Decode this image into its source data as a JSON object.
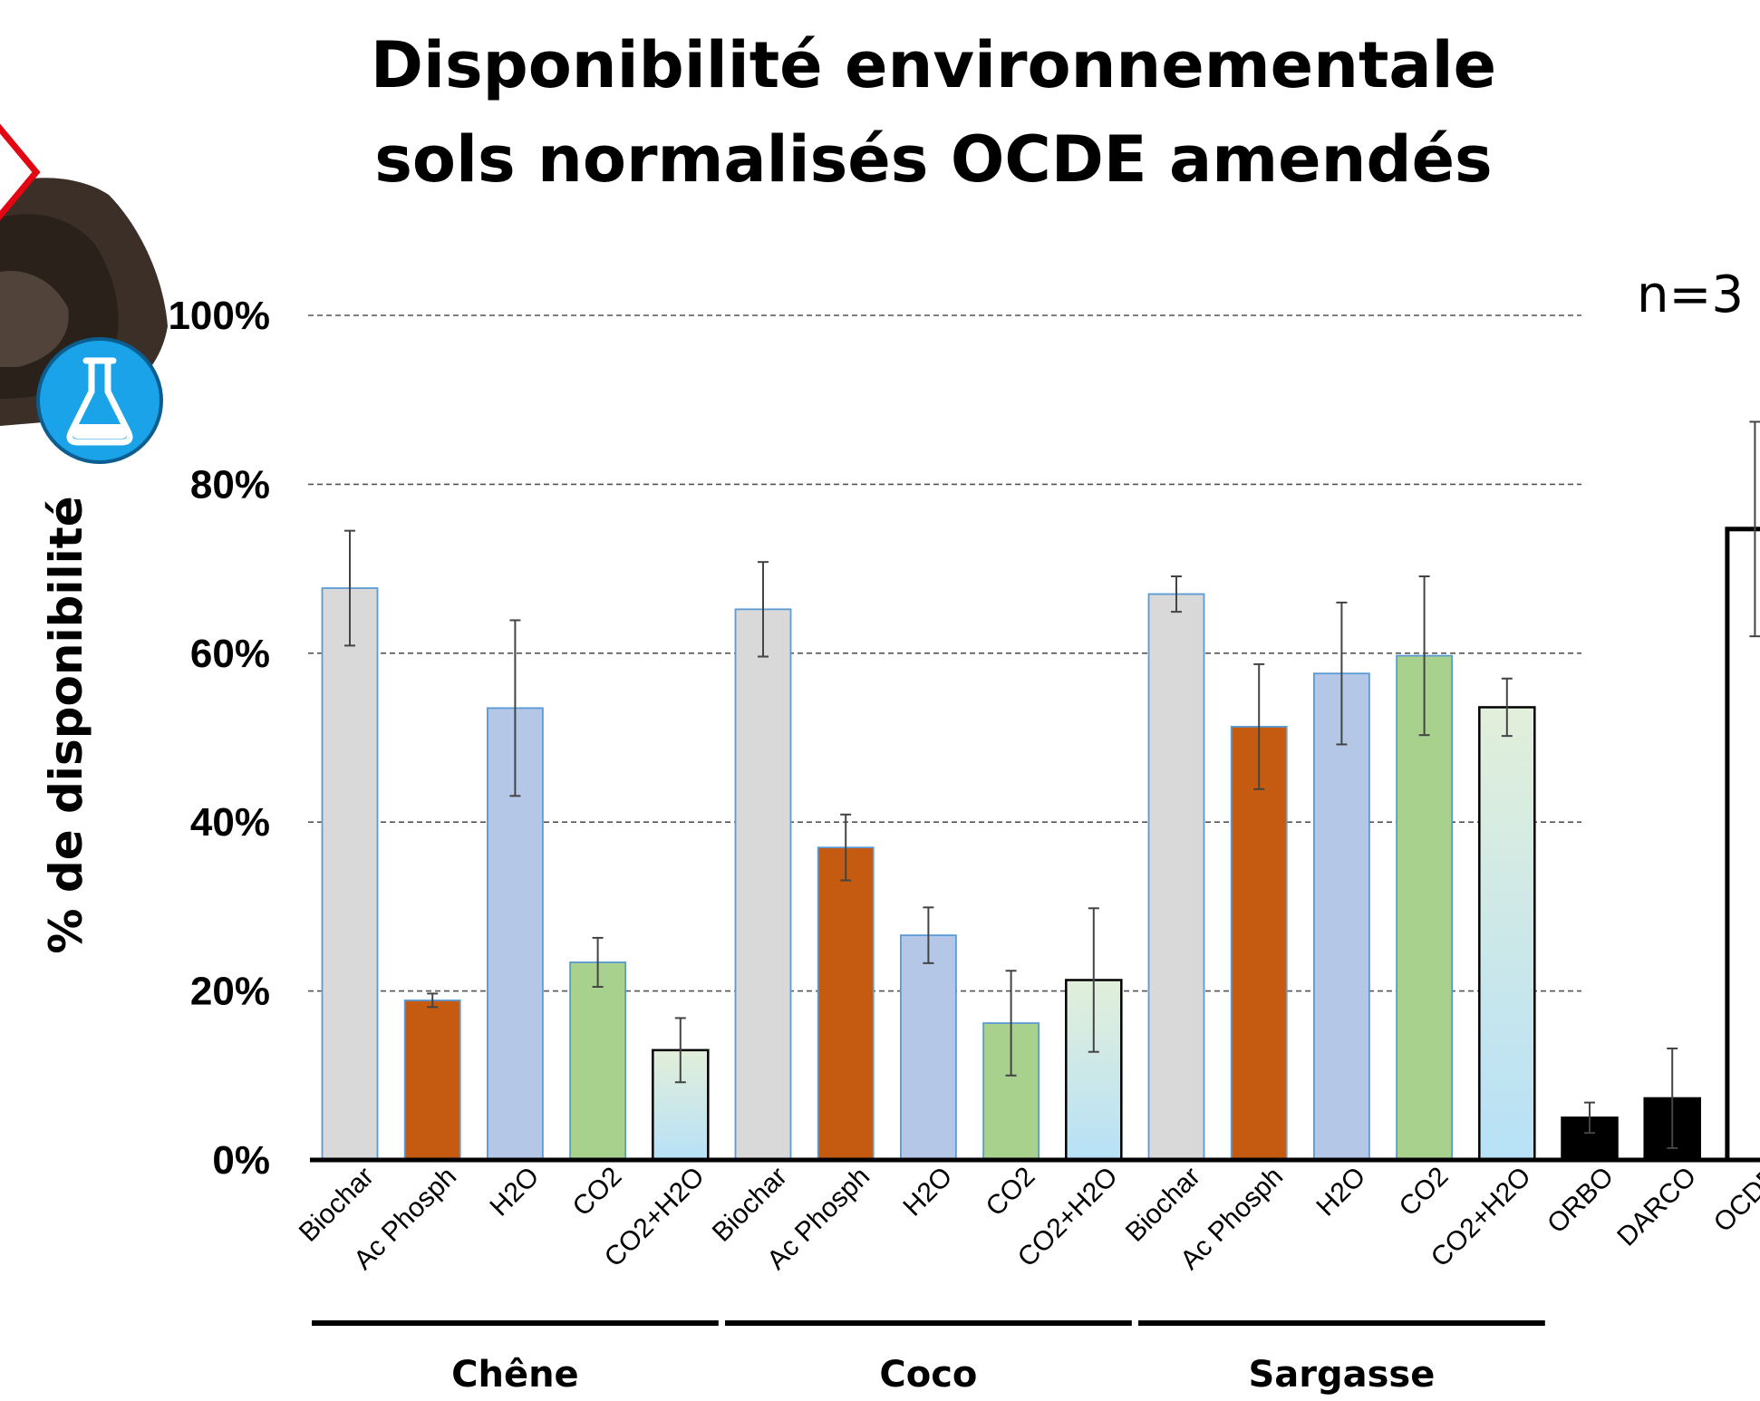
{
  "title_lines": [
    "Disponibilité environnementale",
    "sols normalisés OCDE amendés"
  ],
  "annotation": "n=3",
  "decorations": [
    "soil-pile-image",
    "flask-icon",
    "hazard-diamond-icon"
  ],
  "chart_data": {
    "type": "bar",
    "title": "Disponibilité environnementale sols normalisés OCDE amendés",
    "ylabel": "% de disponibilité",
    "xlabel": "",
    "ylim": [
      0,
      100
    ],
    "yticks": [
      0,
      20,
      40,
      60,
      80,
      100
    ],
    "ytick_format": "percent",
    "grid": "horizontal dashed",
    "categories": [
      "Biochar",
      "Ac Phosph",
      "H2O",
      "CO2",
      "CO2+H2O",
      "Biochar",
      "Ac Phosph",
      "H2O",
      "CO2",
      "CO2+H2O",
      "Biochar",
      "Ac Phosph",
      "H2O",
      "CO2",
      "CO2+H2O",
      "ORBO",
      "DARCO",
      "OCDE"
    ],
    "values": [
      67.7,
      18.9,
      53.5,
      23.4,
      13.0,
      65.2,
      37.0,
      26.6,
      16.2,
      21.3,
      67.0,
      51.3,
      57.6,
      59.7,
      53.6,
      5.0,
      7.3,
      74.7
    ],
    "error": [
      6.8,
      0.8,
      10.4,
      2.9,
      3.8,
      5.6,
      3.9,
      3.3,
      6.2,
      8.5,
      2.1,
      7.4,
      8.4,
      9.4,
      3.4,
      1.8,
      5.9,
      12.7
    ],
    "bar_colors": [
      "#d9d9d9",
      "#c55a11",
      "#b4c7e7",
      "#a9d18e",
      "gradient",
      "#d9d9d9",
      "#c55a11",
      "#b4c7e7",
      "#a9d18e",
      "gradient",
      "#d9d9d9",
      "#c55a11",
      "#b4c7e7",
      "#a9d18e",
      "gradient",
      "#000000",
      "#000000",
      "#ffffff"
    ],
    "groups": [
      {
        "label": "Chêne",
        "members": [
          0,
          4
        ]
      },
      {
        "label": "Coco",
        "members": [
          5,
          9
        ]
      },
      {
        "label": "Sargasse",
        "members": [
          10,
          14
        ]
      }
    ]
  }
}
